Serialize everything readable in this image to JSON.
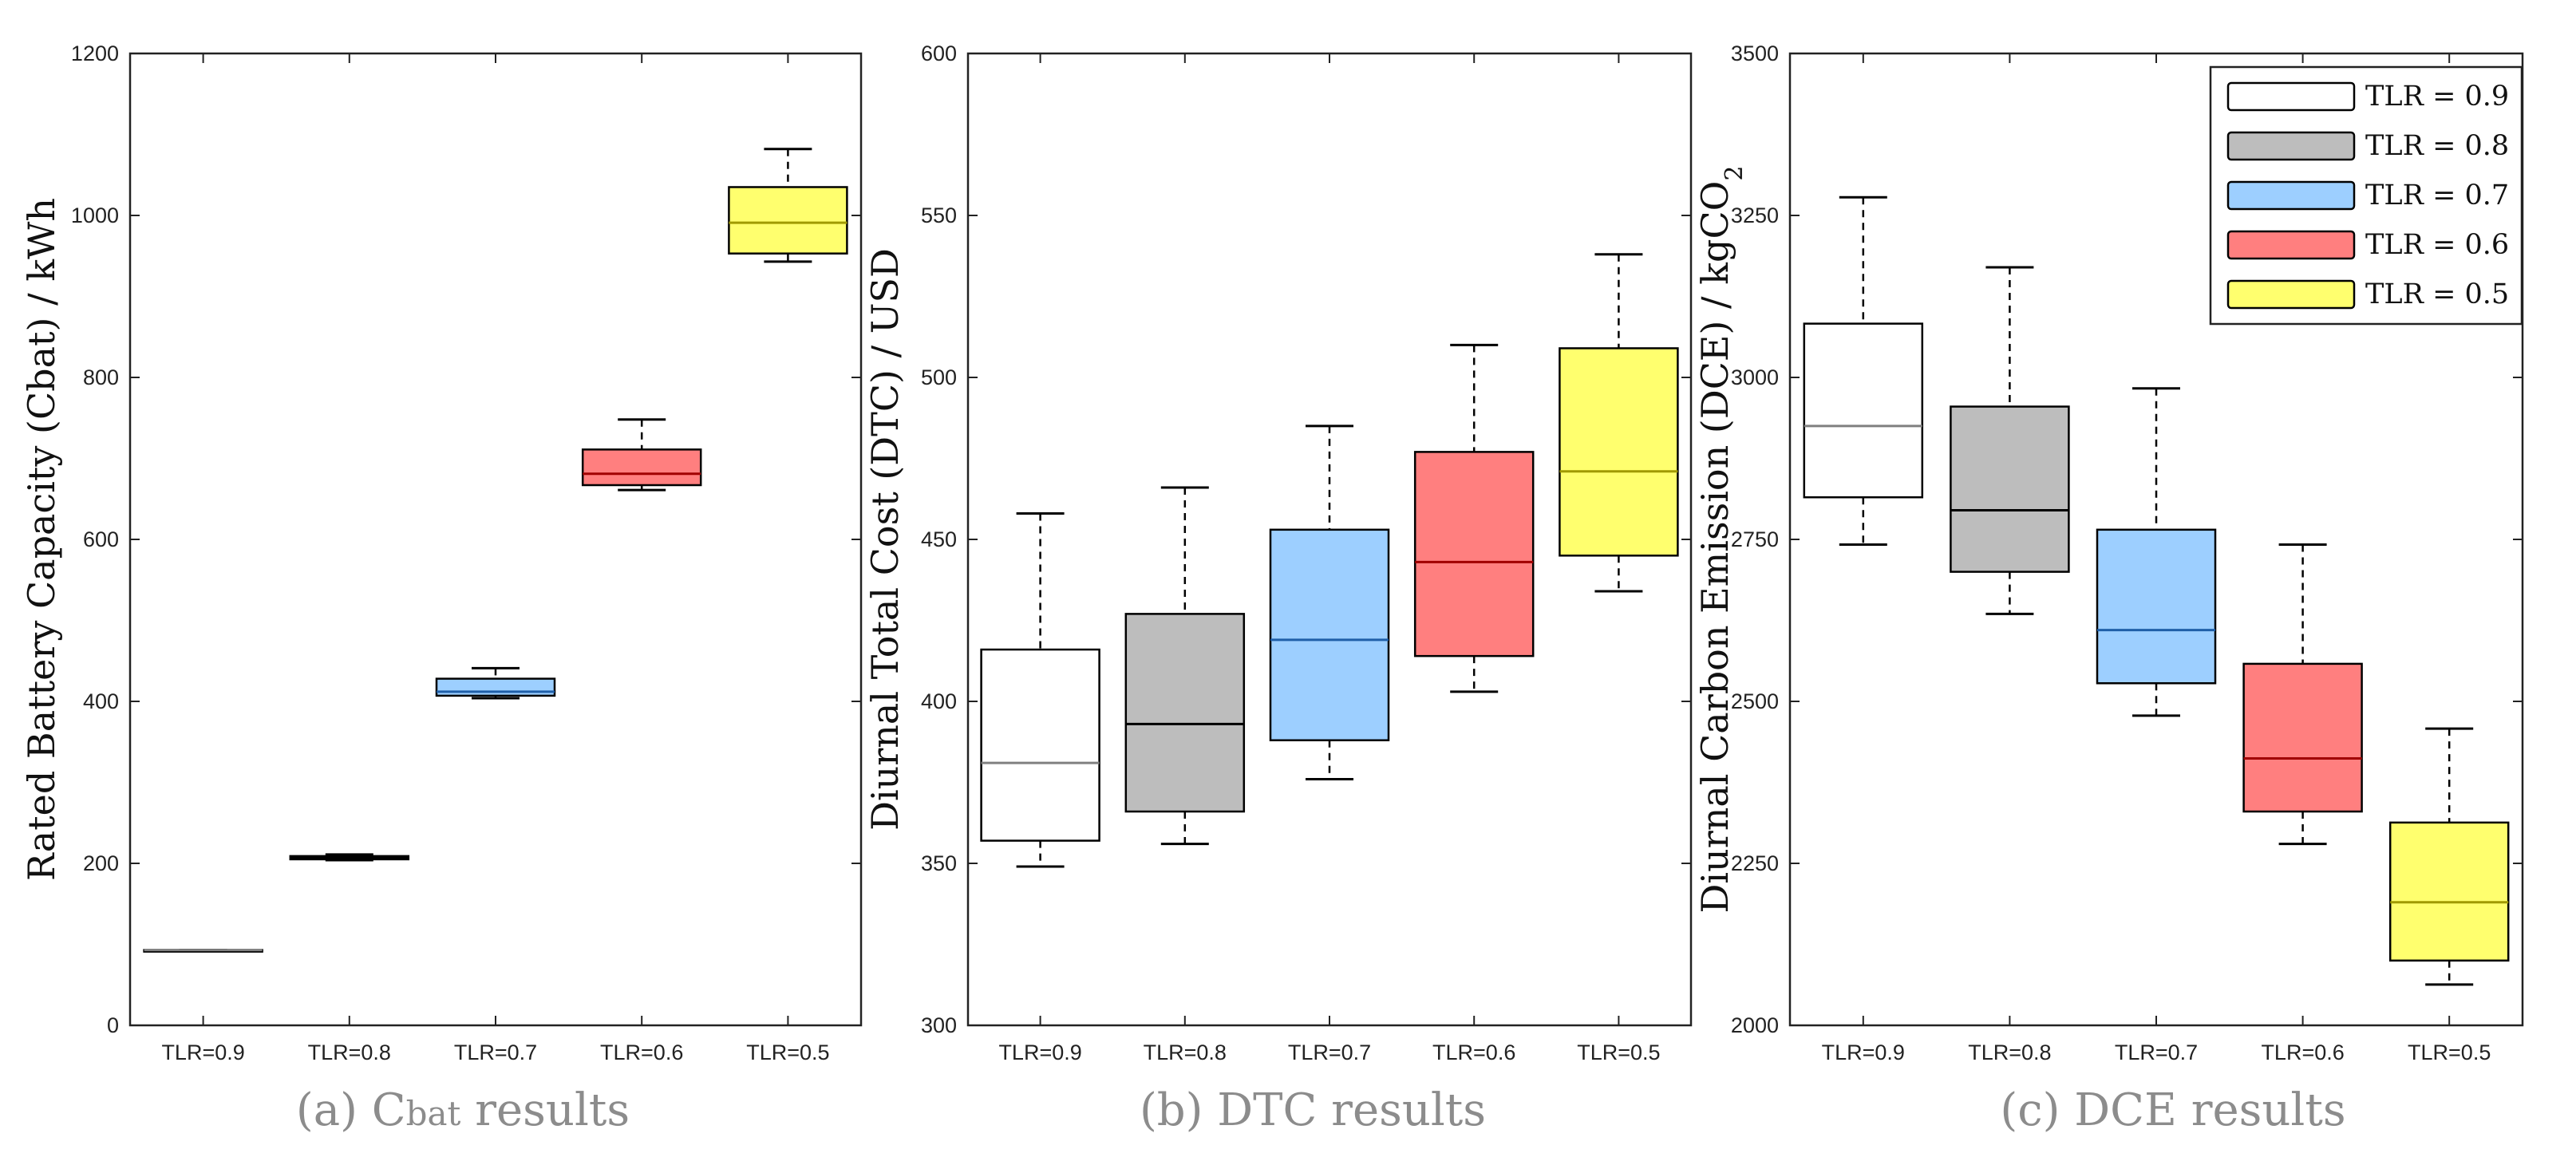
{
  "legend": {
    "position": "top-right",
    "entries": [
      {
        "label": "TLR = 0.9",
        "color": "#ffffff"
      },
      {
        "label": "TLR = 0.8",
        "color": "#bdbdbd"
      },
      {
        "label": "TLR = 0.7",
        "color": "#9dcfff"
      },
      {
        "label": "TLR = 0.6",
        "color": "#ff7f7f"
      },
      {
        "label": "TLR = 0.5",
        "color": "#ffff6e"
      }
    ]
  },
  "chart_data": [
    {
      "type": "box",
      "caption": {
        "prefix": "(a) C",
        "sub": "bat",
        "suffix": " results"
      },
      "ylabel": "Rated Battery Capacity (Cbat) / kWh",
      "ylim": [
        0,
        1200
      ],
      "yticks": [
        0,
        200,
        400,
        600,
        800,
        1000,
        1200
      ],
      "yticklabels": [
        "0",
        "200",
        "400",
        "600",
        "800",
        "1000",
        "1200"
      ],
      "categories": [
        "TLR=0.9",
        "TLR=0.8",
        "TLR=0.7",
        "TLR=0.6",
        "TLR=0.5"
      ],
      "grid": false,
      "boxes": [
        {
          "min": 93,
          "q1": 93,
          "median": 93,
          "q3": 93,
          "max": 93,
          "fill": "#ffffff",
          "median_color": "#808080"
        },
        {
          "min": 204,
          "q1": 205,
          "median": 207,
          "q3": 209,
          "max": 211,
          "fill": "#bdbdbd",
          "median_color": "#000000"
        },
        {
          "min": 404,
          "q1": 407,
          "median": 412,
          "q3": 428,
          "max": 441,
          "fill": "#9dcfff",
          "median_color": "#1f5fa8"
        },
        {
          "min": 661,
          "q1": 667,
          "median": 681,
          "q3": 711,
          "max": 748,
          "fill": "#ff7f7f",
          "median_color": "#a10000"
        },
        {
          "min": 943,
          "q1": 953,
          "median": 991,
          "q3": 1035,
          "max": 1082,
          "fill": "#ffff6e",
          "median_color": "#a09a00"
        }
      ]
    },
    {
      "type": "box",
      "caption": {
        "prefix": "(b) DTC results",
        "sub": "",
        "suffix": ""
      },
      "ylabel": "Diurnal Total Cost (DTC) / USD",
      "ylim": [
        300,
        600
      ],
      "yticks": [
        300,
        350,
        400,
        450,
        500,
        550,
        600
      ],
      "yticklabels": [
        "300",
        "350",
        "400",
        "450",
        "500",
        "550",
        "600"
      ],
      "categories": [
        "TLR=0.9",
        "TLR=0.8",
        "TLR=0.7",
        "TLR=0.6",
        "TLR=0.5"
      ],
      "grid": false,
      "boxes": [
        {
          "min": 349,
          "q1": 357,
          "median": 381,
          "q3": 416,
          "max": 458,
          "fill": "#ffffff",
          "median_color": "#808080"
        },
        {
          "min": 356,
          "q1": 366,
          "median": 393,
          "q3": 427,
          "max": 466,
          "fill": "#bdbdbd",
          "median_color": "#000000"
        },
        {
          "min": 376,
          "q1": 388,
          "median": 419,
          "q3": 453,
          "max": 485,
          "fill": "#9dcfff",
          "median_color": "#1f5fa8"
        },
        {
          "min": 403,
          "q1": 414,
          "median": 443,
          "q3": 477,
          "max": 510,
          "fill": "#ff7f7f",
          "median_color": "#a10000"
        },
        {
          "min": 434,
          "q1": 445,
          "median": 471,
          "q3": 509,
          "max": 538,
          "fill": "#ffff6e",
          "median_color": "#a09a00"
        }
      ]
    },
    {
      "type": "box",
      "caption": {
        "prefix": "(c) DCE results",
        "sub": "",
        "suffix": ""
      },
      "ylabel": "Diurnal Carbon Emission (DCE) / kgCO",
      "ylabel_sub": "2",
      "ylim": [
        2000,
        3500
      ],
      "yticks": [
        2000,
        2250,
        2500,
        2750,
        3000,
        3250,
        3500
      ],
      "yticklabels": [
        "2000",
        "2250",
        "2500",
        "2750",
        "3000",
        "3250",
        "3500"
      ],
      "categories": [
        "TLR=0.9",
        "TLR=0.8",
        "TLR=0.7",
        "TLR=0.6",
        "TLR=0.5"
      ],
      "grid": false,
      "boxes": [
        {
          "min": 2742,
          "q1": 2815,
          "median": 2925,
          "q3": 3083,
          "max": 3278,
          "fill": "#ffffff",
          "median_color": "#808080"
        },
        {
          "min": 2635,
          "q1": 2700,
          "median": 2795,
          "q3": 2955,
          "max": 3170,
          "fill": "#bdbdbd",
          "median_color": "#000000"
        },
        {
          "min": 2478,
          "q1": 2528,
          "median": 2610,
          "q3": 2765,
          "max": 2983,
          "fill": "#9dcfff",
          "median_color": "#1f5fa8"
        },
        {
          "min": 2280,
          "q1": 2330,
          "median": 2412,
          "q3": 2558,
          "max": 2742,
          "fill": "#ff7f7f",
          "median_color": "#a10000"
        },
        {
          "min": 2063,
          "q1": 2100,
          "median": 2190,
          "q3": 2313,
          "max": 2458,
          "fill": "#ffff6e",
          "median_color": "#a09a00"
        }
      ]
    }
  ]
}
